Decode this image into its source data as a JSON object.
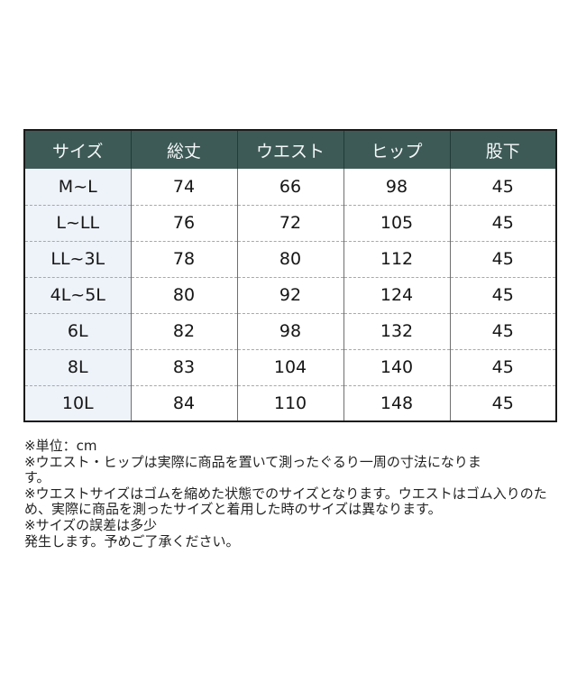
{
  "table": {
    "headers": [
      "サイズ",
      "総丈",
      "ウエスト",
      "ヒップ",
      "股下"
    ],
    "rows": [
      {
        "size": "M~L",
        "values": [
          74,
          66,
          98,
          45
        ]
      },
      {
        "size": "L~LL",
        "values": [
          76,
          72,
          105,
          45
        ]
      },
      {
        "size": "LL~3L",
        "values": [
          78,
          80,
          112,
          45
        ]
      },
      {
        "size": "4L~5L",
        "values": [
          80,
          92,
          124,
          45
        ]
      },
      {
        "size": "6L",
        "values": [
          82,
          98,
          132,
          45
        ]
      },
      {
        "size": "8L",
        "values": [
          83,
          104,
          140,
          45
        ]
      },
      {
        "size": "10L",
        "values": [
          84,
          110,
          148,
          45
        ]
      }
    ]
  },
  "notes": {
    "lines": [
      "※単位：cm",
      "※ウエスト・ヒップは実際に商品を置いて測ったぐるり一周の寸法になりま",
      "す。",
      "※ウエストサイズはゴムを縮めた状態でのサイズとなります。ウエストはゴム入りのた",
      "め、実際に商品を測ったサイズと着用した時のサイズは異なります。",
      "※サイズの誤差は多少",
      "発生します。予めご了承ください。"
    ]
  },
  "colors": {
    "header_bg": "#3d5a56",
    "header_text": "#f5f8f8",
    "size_column_bg": "#eef3fa",
    "outer_border": "#1a1a1a",
    "column_divider": "#6f6f6f",
    "row_dashed_divider": "#a8a8a8",
    "body_text": "#161616"
  },
  "chart_data": {
    "type": "table",
    "title": "",
    "unit": "cm",
    "columns": [
      "サイズ",
      "総丈",
      "ウエスト",
      "ヒップ",
      "股下"
    ],
    "rows": [
      [
        "M~L",
        74,
        66,
        98,
        45
      ],
      [
        "L~LL",
        76,
        72,
        105,
        45
      ],
      [
        "LL~3L",
        78,
        80,
        112,
        45
      ],
      [
        "4L~5L",
        80,
        92,
        124,
        45
      ],
      [
        "6L",
        82,
        98,
        132,
        45
      ],
      [
        "8L",
        83,
        104,
        140,
        45
      ],
      [
        "10L",
        84,
        110,
        148,
        45
      ]
    ]
  }
}
